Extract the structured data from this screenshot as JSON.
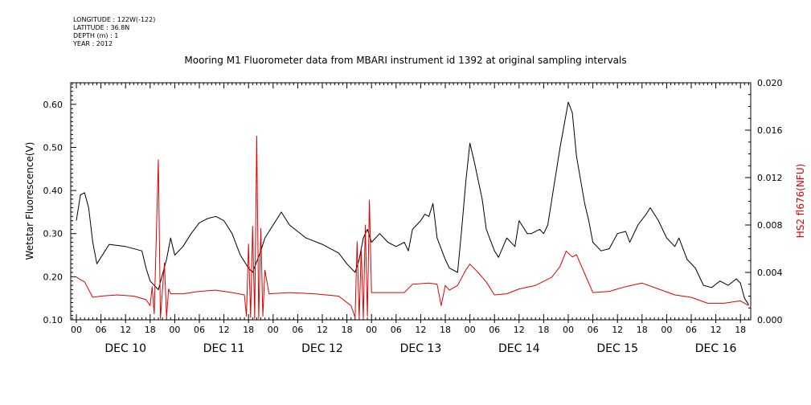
{
  "meta": {
    "longitude": "LONGITUDE : 122W(-122)",
    "latitude": "LATITUDE : 36.8N",
    "depth": "DEPTH (m) : 1",
    "year": "YEAR : 2012"
  },
  "chart_data": {
    "type": "line",
    "title": "Mooring M1 Fluorometer data from MBARI instrument id 1392 at original sampling intervals",
    "xlabel": "",
    "x_hour_ticks": [
      "00",
      "06",
      "12",
      "18",
      "00",
      "06",
      "12",
      "18",
      "00",
      "06",
      "12",
      "18",
      "00",
      "06",
      "12",
      "18",
      "00",
      "06",
      "12",
      "18",
      "00",
      "06",
      "12",
      "18",
      "00",
      "06",
      "12",
      "18"
    ],
    "x_day_labels": [
      "DEC 10",
      "DEC 11",
      "DEC 12",
      "DEC 13",
      "DEC 14",
      "DEC 15",
      "DEC 16"
    ],
    "xlim": [
      "2012-12-10 00:00",
      "2012-12-16 20:00"
    ],
    "y_left": {
      "label": "Wetstar Fluorescence(V)",
      "ylim": [
        0.1,
        0.65
      ],
      "ticks": [
        "0.10",
        "0.20",
        "0.30",
        "0.40",
        "0.50",
        "0.60"
      ]
    },
    "y_right": {
      "label": "HS2 fl676(NFU)",
      "ylim": [
        0.0,
        0.02
      ],
      "ticks": [
        "0.000",
        "0.004",
        "0.008",
        "0.012",
        "0.016",
        "0.020"
      ]
    },
    "colors": {
      "left_series": "#000000",
      "right_series": "#dd0000"
    },
    "series": [
      {
        "axis": "left",
        "points": [
          [
            "2012-12-10 00:00",
            0.33
          ],
          [
            "2012-12-10 01:00",
            0.39
          ],
          [
            "2012-12-10 02:00",
            0.395
          ],
          [
            "2012-12-10 03:00",
            0.36
          ],
          [
            "2012-12-10 04:00",
            0.28
          ],
          [
            "2012-12-10 05:00",
            0.23
          ],
          [
            "2012-12-10 07:00",
            0.26
          ],
          [
            "2012-12-10 08:00",
            0.275
          ],
          [
            "2012-12-10 12:00",
            0.27
          ],
          [
            "2012-12-10 16:00",
            0.26
          ],
          [
            "2012-12-10 17:00",
            0.22
          ],
          [
            "2012-12-10 18:00",
            0.19
          ],
          [
            "2012-12-10 20:00",
            0.17
          ],
          [
            "2012-12-10 22:00",
            0.24
          ],
          [
            "2012-12-10 23:00",
            0.29
          ],
          [
            "2012-12-11 00:00",
            0.25
          ],
          [
            "2012-12-11 02:00",
            0.27
          ],
          [
            "2012-12-11 04:00",
            0.3
          ],
          [
            "2012-12-11 06:00",
            0.325
          ],
          [
            "2012-12-11 08:00",
            0.335
          ],
          [
            "2012-12-11 10:00",
            0.34
          ],
          [
            "2012-12-11 12:00",
            0.33
          ],
          [
            "2012-12-11 14:00",
            0.3
          ],
          [
            "2012-12-11 16:00",
            0.25
          ],
          [
            "2012-12-11 18:00",
            0.22
          ],
          [
            "2012-12-11 19:00",
            0.21
          ],
          [
            "2012-12-11 21:00",
            0.26
          ],
          [
            "2012-12-11 22:00",
            0.29
          ],
          [
            "2012-12-12 00:00",
            0.32
          ],
          [
            "2012-12-12 02:00",
            0.35
          ],
          [
            "2012-12-12 04:00",
            0.32
          ],
          [
            "2012-12-12 08:00",
            0.29
          ],
          [
            "2012-12-12 12:00",
            0.275
          ],
          [
            "2012-12-12 16:00",
            0.255
          ],
          [
            "2012-12-12 18:00",
            0.23
          ],
          [
            "2012-12-12 20:00",
            0.21
          ],
          [
            "2012-12-12 21:00",
            0.24
          ],
          [
            "2012-12-12 22:00",
            0.29
          ],
          [
            "2012-12-12 23:00",
            0.31
          ],
          [
            "2012-12-13 00:00",
            0.28
          ],
          [
            "2012-12-13 02:00",
            0.3
          ],
          [
            "2012-12-13 04:00",
            0.28
          ],
          [
            "2012-12-13 06:00",
            0.27
          ],
          [
            "2012-12-13 08:00",
            0.28
          ],
          [
            "2012-12-13 09:00",
            0.26
          ],
          [
            "2012-12-13 10:00",
            0.31
          ],
          [
            "2012-12-13 12:00",
            0.33
          ],
          [
            "2012-12-13 13:00",
            0.345
          ],
          [
            "2012-12-13 14:00",
            0.34
          ],
          [
            "2012-12-13 15:00",
            0.37
          ],
          [
            "2012-12-13 16:00",
            0.29
          ],
          [
            "2012-12-13 18:00",
            0.24
          ],
          [
            "2012-12-13 19:00",
            0.22
          ],
          [
            "2012-12-13 21:00",
            0.21
          ],
          [
            "2012-12-13 22:00",
            0.31
          ],
          [
            "2012-12-13 23:00",
            0.42
          ],
          [
            "2012-12-14 00:00",
            0.51
          ],
          [
            "2012-12-14 01:00",
            0.47
          ],
          [
            "2012-12-14 03:00",
            0.38
          ],
          [
            "2012-12-14 04:00",
            0.31
          ],
          [
            "2012-12-14 06:00",
            0.26
          ],
          [
            "2012-12-14 07:00",
            0.245
          ],
          [
            "2012-12-14 09:00",
            0.29
          ],
          [
            "2012-12-14 11:00",
            0.27
          ],
          [
            "2012-12-14 12:00",
            0.33
          ],
          [
            "2012-12-14 14:00",
            0.3
          ],
          [
            "2012-12-14 15:00",
            0.3
          ],
          [
            "2012-12-14 17:00",
            0.31
          ],
          [
            "2012-12-14 18:00",
            0.3
          ],
          [
            "2012-12-14 19:00",
            0.32
          ],
          [
            "2012-12-14 20:00",
            0.38
          ],
          [
            "2012-12-14 22:00",
            0.5
          ],
          [
            "2012-12-15 00:00",
            0.605
          ],
          [
            "2012-12-15 01:00",
            0.58
          ],
          [
            "2012-12-15 02:00",
            0.48
          ],
          [
            "2012-12-15 04:00",
            0.37
          ],
          [
            "2012-12-15 05:00",
            0.33
          ],
          [
            "2012-12-15 06:00",
            0.28
          ],
          [
            "2012-12-15 08:00",
            0.26
          ],
          [
            "2012-12-15 10:00",
            0.265
          ],
          [
            "2012-12-15 12:00",
            0.3
          ],
          [
            "2012-12-15 14:00",
            0.305
          ],
          [
            "2012-12-15 15:00",
            0.28
          ],
          [
            "2012-12-15 17:00",
            0.32
          ],
          [
            "2012-12-15 19:00",
            0.345
          ],
          [
            "2012-12-15 20:00",
            0.36
          ],
          [
            "2012-12-15 22:00",
            0.33
          ],
          [
            "2012-12-16 00:00",
            0.29
          ],
          [
            "2012-12-16 02:00",
            0.27
          ],
          [
            "2012-12-16 03:00",
            0.29
          ],
          [
            "2012-12-16 05:00",
            0.24
          ],
          [
            "2012-12-16 07:00",
            0.22
          ],
          [
            "2012-12-16 09:00",
            0.18
          ],
          [
            "2012-12-16 11:00",
            0.175
          ],
          [
            "2012-12-16 13:00",
            0.19
          ],
          [
            "2012-12-16 15:00",
            0.18
          ],
          [
            "2012-12-16 17:00",
            0.195
          ],
          [
            "2012-12-16 18:00",
            0.185
          ],
          [
            "2012-12-16 19:00",
            0.15
          ],
          [
            "2012-12-16 20:00",
            0.135
          ]
        ]
      },
      {
        "axis": "right",
        "points": [
          [
            "2012-12-10 00:00",
            0.0036
          ],
          [
            "2012-12-10 02:00",
            0.0032
          ],
          [
            "2012-12-10 04:00",
            0.0019
          ],
          [
            "2012-12-10 06:00",
            0.002
          ],
          [
            "2012-12-10 10:00",
            0.0021
          ],
          [
            "2012-12-10 14:00",
            0.002
          ],
          [
            "2012-12-10 17:00",
            0.0017
          ],
          [
            "2012-12-10 18:00",
            0.0012
          ],
          [
            "2012-12-10 18:30",
            0.0028
          ],
          [
            "2012-12-10 19:00",
            0.0005
          ],
          [
            "2012-12-10 19:30",
            0.0069
          ],
          [
            "2012-12-10 20:00",
            0.0135
          ],
          [
            "2012-12-10 20:30",
            0.0001
          ],
          [
            "2012-12-10 21:00",
            0.0025
          ],
          [
            "2012-12-10 21:30",
            0.0048
          ],
          [
            "2012-12-10 22:00",
            0.0002
          ],
          [
            "2012-12-10 22:30",
            0.0026
          ],
          [
            "2012-12-10 23:00",
            0.0022
          ],
          [
            "2012-12-11 02:00",
            0.0022
          ],
          [
            "2012-12-11 06:00",
            0.0024
          ],
          [
            "2012-12-11 10:00",
            0.0025
          ],
          [
            "2012-12-11 14:00",
            0.0023
          ],
          [
            "2012-12-11 17:00",
            0.0021
          ],
          [
            "2012-12-11 17:30",
            0.0003
          ],
          [
            "2012-12-11 18:00",
            0.0064
          ],
          [
            "2012-12-11 18:30",
            0.0002
          ],
          [
            "2012-12-11 19:00",
            0.0079
          ],
          [
            "2012-12-11 19:30",
            0.0001
          ],
          [
            "2012-12-11 20:00",
            0.0155
          ],
          [
            "2012-12-11 20:30",
            0.0001
          ],
          [
            "2012-12-11 21:00",
            0.0077
          ],
          [
            "2012-12-11 21:30",
            0.0003
          ],
          [
            "2012-12-11 22:00",
            0.0042
          ],
          [
            "2012-12-11 23:00",
            0.0022
          ],
          [
            "2012-12-12 04:00",
            0.0023
          ],
          [
            "2012-12-12 10:00",
            0.0022
          ],
          [
            "2012-12-12 16:00",
            0.002
          ],
          [
            "2012-12-12 19:00",
            0.0012
          ],
          [
            "2012-12-12 20:00",
            0.0002
          ],
          [
            "2012-12-12 20:30",
            0.0066
          ],
          [
            "2012-12-12 21:00",
            0.0001
          ],
          [
            "2012-12-12 21:30",
            0.006
          ],
          [
            "2012-12-12 22:00",
            0.0001
          ],
          [
            "2012-12-12 22:30",
            0.008
          ],
          [
            "2012-12-12 23:00",
            0.0003
          ],
          [
            "2012-12-12 23:30",
            0.0101
          ],
          [
            "2012-12-13 00:00",
            0.0023
          ],
          [
            "2012-12-13 04:00",
            0.0023
          ],
          [
            "2012-12-13 08:00",
            0.0023
          ],
          [
            "2012-12-13 10:00",
            0.003
          ],
          [
            "2012-12-13 14:00",
            0.0031
          ],
          [
            "2012-12-13 16:00",
            0.003
          ],
          [
            "2012-12-13 17:00",
            0.0012
          ],
          [
            "2012-12-13 18:00",
            0.0029
          ],
          [
            "2012-12-13 19:00",
            0.0025
          ],
          [
            "2012-12-13 21:00",
            0.0029
          ],
          [
            "2012-12-13 23:00",
            0.0042
          ],
          [
            "2012-12-14 00:00",
            0.0047
          ],
          [
            "2012-12-14 02:00",
            0.004
          ],
          [
            "2012-12-14 04:00",
            0.0032
          ],
          [
            "2012-12-14 06:00",
            0.0021
          ],
          [
            "2012-12-14 09:00",
            0.0022
          ],
          [
            "2012-12-14 12:00",
            0.0026
          ],
          [
            "2012-12-14 16:00",
            0.0029
          ],
          [
            "2012-12-14 20:00",
            0.0036
          ],
          [
            "2012-12-14 22:00",
            0.0045
          ],
          [
            "2012-12-14 23:30",
            0.0058
          ],
          [
            "2012-12-15 01:00",
            0.0053
          ],
          [
            "2012-12-15 02:00",
            0.0055
          ],
          [
            "2012-12-15 04:00",
            0.0039
          ],
          [
            "2012-12-15 06:00",
            0.0023
          ],
          [
            "2012-12-15 10:00",
            0.0024
          ],
          [
            "2012-12-15 14:00",
            0.0028
          ],
          [
            "2012-12-15 18:00",
            0.0031
          ],
          [
            "2012-12-15 22:00",
            0.0026
          ],
          [
            "2012-12-16 02:00",
            0.0021
          ],
          [
            "2012-12-16 06:00",
            0.0019
          ],
          [
            "2012-12-16 10:00",
            0.0014
          ],
          [
            "2012-12-16 14:00",
            0.0014
          ],
          [
            "2012-12-16 18:00",
            0.0016
          ],
          [
            "2012-12-16 20:00",
            0.0012
          ]
        ]
      }
    ]
  }
}
